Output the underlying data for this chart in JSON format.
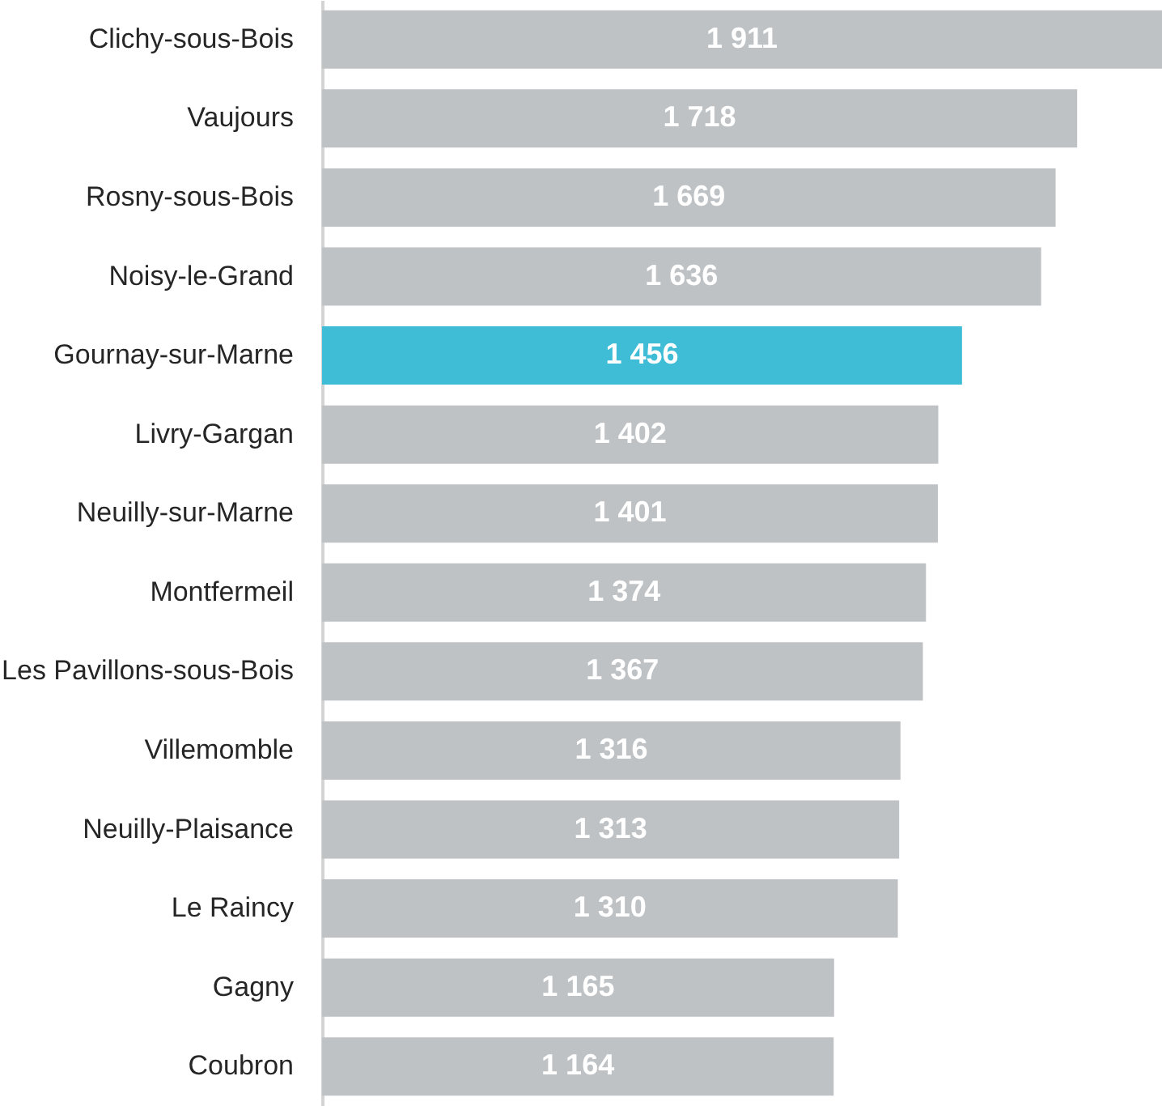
{
  "chart_data": {
    "type": "bar",
    "orientation": "horizontal",
    "categories": [
      "Clichy-sous-Bois",
      "Vaujours",
      "Rosny-sous-Bois",
      "Noisy-le-Grand",
      "Gournay-sur-Marne",
      "Livry-Gargan",
      "Neuilly-sur-Marne",
      "Montfermeil",
      "Les Pavillons-sous-Bois",
      "Villemomble",
      "Neuilly-Plaisance",
      "Le Raincy",
      "Gagny",
      "Coubron"
    ],
    "values": [
      1911,
      1718,
      1669,
      1636,
      1456,
      1402,
      1401,
      1374,
      1367,
      1316,
      1313,
      1310,
      1165,
      1164
    ],
    "value_labels": [
      "1 911",
      "1 718",
      "1 669",
      "1 636",
      "1 456",
      "1 402",
      "1 401",
      "1 374",
      "1 367",
      "1 316",
      "1 313",
      "1 310",
      "1 165",
      "1 164"
    ],
    "colors": [
      "#bfc2c5",
      "#bfc2c5",
      "#bfc2c5",
      "#bfc2c5",
      "#3fbcd6",
      "#bfc2c5",
      "#bfc2c5",
      "#bfc2c5",
      "#bfc2c5",
      "#bfc2c5",
      "#bfc2c5",
      "#bfc2c5",
      "#bfc2c5",
      "#bfc2c5"
    ],
    "xlim": [
      0,
      1911
    ],
    "tick_labels": "y"
  }
}
